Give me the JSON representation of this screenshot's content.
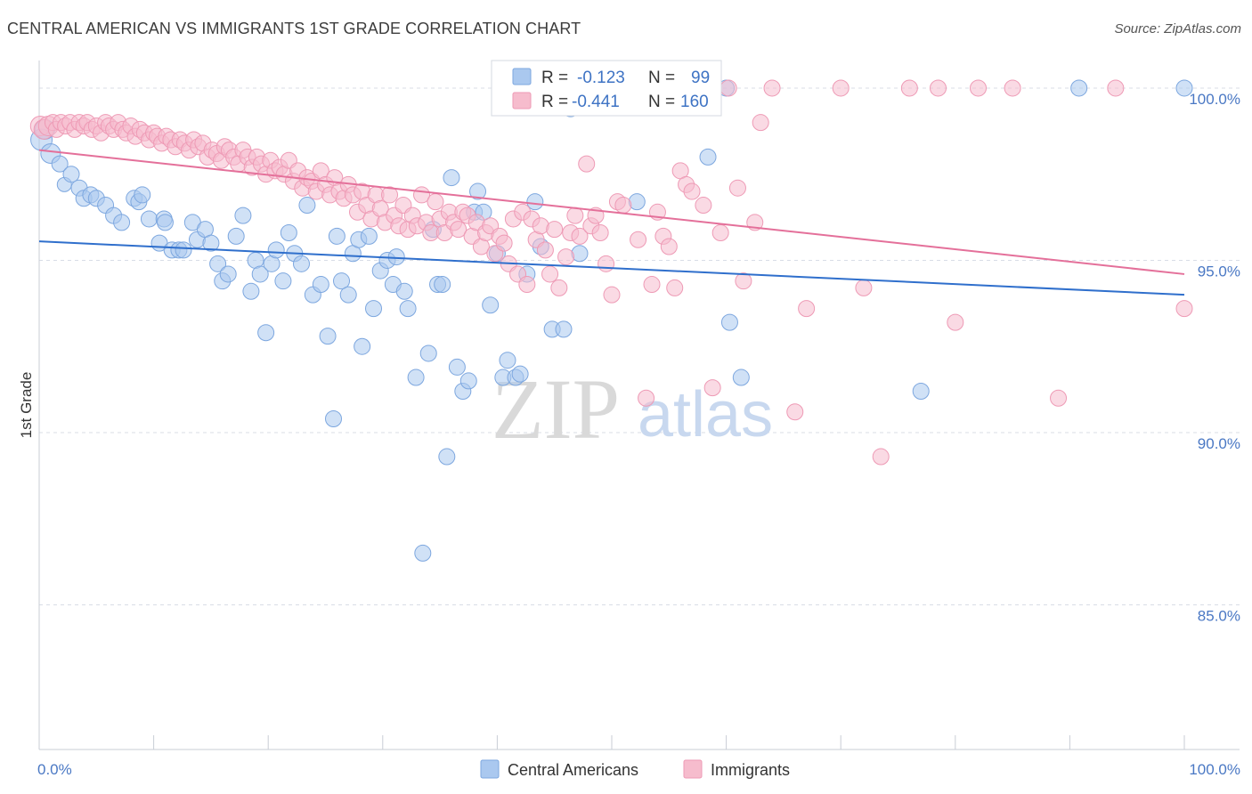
{
  "title": "CENTRAL AMERICAN VS IMMIGRANTS 1ST GRADE CORRELATION CHART",
  "source": "Source: ZipAtlas.com",
  "watermark": {
    "zip": "ZIP",
    "atlas": "atlas"
  },
  "colors": {
    "blue_fill": "#aac8ef",
    "blue_stroke": "#7da7df",
    "blue_line": "#2f6fcc",
    "pink_fill": "#f6bccd",
    "pink_stroke": "#ee9ab5",
    "pink_line": "#e4709a",
    "grid": "#d8dde6",
    "tick_text": "#4a78c4"
  },
  "chart_data": {
    "type": "scatter",
    "xlabel": "",
    "ylabel": "1st Grade",
    "xlim": [
      0,
      100
    ],
    "ylim": [
      80.8,
      100.8
    ],
    "x_tick_labels": [
      {
        "value": 0,
        "label": "0.0%"
      },
      {
        "value": 100,
        "label": "100.0%"
      }
    ],
    "y_ticks": [
      {
        "value": 100,
        "label": "100.0%"
      },
      {
        "value": 95,
        "label": "95.0%"
      },
      {
        "value": 90,
        "label": "90.0%"
      },
      {
        "value": 85,
        "label": "85.0%"
      }
    ],
    "grid": true,
    "legend": {
      "position": "top-center",
      "entries": [
        {
          "r_label": "R =",
          "r_value": "-0.123",
          "n_label": "N =",
          "n_value": "99"
        },
        {
          "r_label": "R =",
          "r_value": "-0.441",
          "n_label": "N =",
          "n_value": "160"
        }
      ]
    },
    "bottom_legend": [
      "Central Americans",
      "Immigrants"
    ],
    "series": [
      {
        "name": "Central Americans",
        "trend": {
          "x": [
            0,
            100
          ],
          "y": [
            95.55,
            94.0
          ]
        },
        "points": [
          [
            0.2,
            98.5
          ],
          [
            0.5,
            98.8
          ],
          [
            1.0,
            98.1
          ],
          [
            1.8,
            97.8
          ],
          [
            2.2,
            97.2
          ],
          [
            2.8,
            97.5
          ],
          [
            3.5,
            97.1
          ],
          [
            3.9,
            96.8
          ],
          [
            4.5,
            96.9
          ],
          [
            5.0,
            96.8
          ],
          [
            5.8,
            96.6
          ],
          [
            6.5,
            96.3
          ],
          [
            7.2,
            96.1
          ],
          [
            8.3,
            96.8
          ],
          [
            8.7,
            96.7
          ],
          [
            9.0,
            96.9
          ],
          [
            9.6,
            96.2
          ],
          [
            10.5,
            95.5
          ],
          [
            10.9,
            96.2
          ],
          [
            11.0,
            96.1
          ],
          [
            11.6,
            95.3
          ],
          [
            12.2,
            95.3
          ],
          [
            12.6,
            95.3
          ],
          [
            13.4,
            96.1
          ],
          [
            13.8,
            95.6
          ],
          [
            14.5,
            95.9
          ],
          [
            15.0,
            95.5
          ],
          [
            15.6,
            94.9
          ],
          [
            16.0,
            94.4
          ],
          [
            16.5,
            94.6
          ],
          [
            17.2,
            95.7
          ],
          [
            17.8,
            96.3
          ],
          [
            18.5,
            94.1
          ],
          [
            18.9,
            95.0
          ],
          [
            19.3,
            94.6
          ],
          [
            19.8,
            92.9
          ],
          [
            20.3,
            94.9
          ],
          [
            20.7,
            95.3
          ],
          [
            21.3,
            94.4
          ],
          [
            21.8,
            95.8
          ],
          [
            22.3,
            95.2
          ],
          [
            22.9,
            94.9
          ],
          [
            23.4,
            96.6
          ],
          [
            23.9,
            94.0
          ],
          [
            24.6,
            94.3
          ],
          [
            25.2,
            92.8
          ],
          [
            25.7,
            90.4
          ],
          [
            26.0,
            95.7
          ],
          [
            26.4,
            94.4
          ],
          [
            27.0,
            94.0
          ],
          [
            27.4,
            95.2
          ],
          [
            27.9,
            95.6
          ],
          [
            28.2,
            92.5
          ],
          [
            28.8,
            95.7
          ],
          [
            29.2,
            93.6
          ],
          [
            29.8,
            94.7
          ],
          [
            30.4,
            95.0
          ],
          [
            30.9,
            94.3
          ],
          [
            31.2,
            95.1
          ],
          [
            31.9,
            94.1
          ],
          [
            32.2,
            93.6
          ],
          [
            32.9,
            91.6
          ],
          [
            33.5,
            86.5
          ],
          [
            34.0,
            92.3
          ],
          [
            34.4,
            95.9
          ],
          [
            34.8,
            94.3
          ],
          [
            35.2,
            94.3
          ],
          [
            35.6,
            89.3
          ],
          [
            36.0,
            97.4
          ],
          [
            36.5,
            91.9
          ],
          [
            37.0,
            91.2
          ],
          [
            37.5,
            91.5
          ],
          [
            38.0,
            96.4
          ],
          [
            38.3,
            97.0
          ],
          [
            38.8,
            96.4
          ],
          [
            39.4,
            93.7
          ],
          [
            40.0,
            95.2
          ],
          [
            40.5,
            91.6
          ],
          [
            40.9,
            92.1
          ],
          [
            41.6,
            91.6
          ],
          [
            42.0,
            91.7
          ],
          [
            42.6,
            94.6
          ],
          [
            43.3,
            96.7
          ],
          [
            43.8,
            95.4
          ],
          [
            44.8,
            93.0
          ],
          [
            45.8,
            93.0
          ],
          [
            46.4,
            99.4
          ],
          [
            47.2,
            95.2
          ],
          [
            47.8,
            100.0
          ],
          [
            52.2,
            96.7
          ],
          [
            58.4,
            98.0
          ],
          [
            60.0,
            100.0
          ],
          [
            60.3,
            93.2
          ],
          [
            61.3,
            91.6
          ],
          [
            77.0,
            91.2
          ],
          [
            90.8,
            100.0
          ],
          [
            100.0,
            100.0
          ]
        ]
      },
      {
        "name": "Immigrants",
        "trend": {
          "x": [
            0,
            100
          ],
          "y": [
            98.2,
            94.6
          ]
        },
        "points": [
          [
            0.1,
            98.9
          ],
          [
            0.4,
            98.8
          ],
          [
            0.8,
            98.9
          ],
          [
            1.2,
            99.0
          ],
          [
            1.5,
            98.8
          ],
          [
            1.9,
            99.0
          ],
          [
            2.3,
            98.9
          ],
          [
            2.7,
            99.0
          ],
          [
            3.1,
            98.8
          ],
          [
            3.5,
            99.0
          ],
          [
            3.9,
            98.9
          ],
          [
            4.2,
            99.0
          ],
          [
            4.6,
            98.8
          ],
          [
            5.0,
            98.9
          ],
          [
            5.4,
            98.7
          ],
          [
            5.8,
            99.0
          ],
          [
            6.1,
            98.9
          ],
          [
            6.5,
            98.8
          ],
          [
            6.9,
            99.0
          ],
          [
            7.3,
            98.8
          ],
          [
            7.6,
            98.7
          ],
          [
            8.0,
            98.9
          ],
          [
            8.4,
            98.6
          ],
          [
            8.8,
            98.8
          ],
          [
            9.2,
            98.7
          ],
          [
            9.6,
            98.5
          ],
          [
            10.0,
            98.7
          ],
          [
            10.3,
            98.6
          ],
          [
            10.7,
            98.4
          ],
          [
            11.1,
            98.6
          ],
          [
            11.5,
            98.5
          ],
          [
            11.9,
            98.3
          ],
          [
            12.3,
            98.5
          ],
          [
            12.7,
            98.4
          ],
          [
            13.1,
            98.2
          ],
          [
            13.5,
            98.5
          ],
          [
            13.9,
            98.3
          ],
          [
            14.3,
            98.4
          ],
          [
            14.7,
            98.0
          ],
          [
            15.1,
            98.2
          ],
          [
            15.5,
            98.1
          ],
          [
            15.9,
            97.9
          ],
          [
            16.2,
            98.3
          ],
          [
            16.6,
            98.2
          ],
          [
            17.0,
            98.0
          ],
          [
            17.4,
            97.8
          ],
          [
            17.8,
            98.2
          ],
          [
            18.2,
            98.0
          ],
          [
            18.6,
            97.7
          ],
          [
            19.0,
            98.0
          ],
          [
            19.4,
            97.8
          ],
          [
            19.8,
            97.5
          ],
          [
            20.2,
            97.9
          ],
          [
            20.6,
            97.6
          ],
          [
            21.0,
            97.7
          ],
          [
            21.4,
            97.5
          ],
          [
            21.8,
            97.9
          ],
          [
            22.2,
            97.3
          ],
          [
            22.6,
            97.6
          ],
          [
            23.0,
            97.1
          ],
          [
            23.4,
            97.4
          ],
          [
            23.8,
            97.3
          ],
          [
            24.2,
            97.0
          ],
          [
            24.6,
            97.6
          ],
          [
            25.0,
            97.2
          ],
          [
            25.4,
            96.9
          ],
          [
            25.8,
            97.4
          ],
          [
            26.2,
            97.0
          ],
          [
            26.6,
            96.8
          ],
          [
            27.0,
            97.2
          ],
          [
            27.4,
            96.9
          ],
          [
            27.8,
            96.4
          ],
          [
            28.2,
            97.0
          ],
          [
            28.6,
            96.6
          ],
          [
            29.0,
            96.2
          ],
          [
            29.4,
            96.9
          ],
          [
            29.8,
            96.5
          ],
          [
            30.2,
            96.1
          ],
          [
            30.6,
            96.9
          ],
          [
            31.0,
            96.3
          ],
          [
            31.4,
            96.0
          ],
          [
            31.8,
            96.6
          ],
          [
            32.2,
            95.9
          ],
          [
            32.6,
            96.3
          ],
          [
            33.0,
            96.0
          ],
          [
            33.4,
            96.9
          ],
          [
            33.8,
            96.1
          ],
          [
            34.2,
            95.8
          ],
          [
            34.6,
            96.7
          ],
          [
            35.0,
            96.2
          ],
          [
            35.4,
            95.8
          ],
          [
            35.8,
            96.4
          ],
          [
            36.2,
            96.1
          ],
          [
            36.6,
            95.9
          ],
          [
            37.0,
            96.4
          ],
          [
            37.4,
            96.3
          ],
          [
            37.8,
            95.7
          ],
          [
            38.2,
            96.1
          ],
          [
            38.6,
            95.4
          ],
          [
            39.0,
            95.8
          ],
          [
            39.4,
            96.0
          ],
          [
            39.8,
            95.2
          ],
          [
            40.2,
            95.7
          ],
          [
            40.6,
            95.5
          ],
          [
            41.0,
            94.9
          ],
          [
            41.4,
            96.2
          ],
          [
            41.8,
            94.6
          ],
          [
            42.2,
            96.4
          ],
          [
            42.6,
            94.3
          ],
          [
            43.0,
            96.2
          ],
          [
            43.4,
            95.6
          ],
          [
            43.8,
            96.0
          ],
          [
            44.2,
            95.3
          ],
          [
            44.6,
            94.6
          ],
          [
            45.0,
            95.9
          ],
          [
            45.4,
            94.2
          ],
          [
            46.0,
            95.1
          ],
          [
            46.4,
            95.8
          ],
          [
            46.8,
            96.3
          ],
          [
            47.2,
            95.7
          ],
          [
            47.8,
            97.8
          ],
          [
            48.2,
            96.0
          ],
          [
            48.6,
            96.3
          ],
          [
            49.0,
            95.8
          ],
          [
            49.5,
            94.9
          ],
          [
            50.0,
            94.0
          ],
          [
            50.5,
            96.7
          ],
          [
            51.0,
            96.6
          ],
          [
            52.3,
            95.6
          ],
          [
            53.0,
            91.0
          ],
          [
            53.5,
            94.3
          ],
          [
            54.0,
            96.4
          ],
          [
            54.5,
            95.7
          ],
          [
            55.0,
            95.4
          ],
          [
            55.5,
            94.2
          ],
          [
            56.0,
            97.6
          ],
          [
            56.5,
            97.2
          ],
          [
            57.0,
            97.0
          ],
          [
            58.0,
            96.6
          ],
          [
            58.8,
            91.3
          ],
          [
            59.5,
            95.8
          ],
          [
            60.2,
            100.0
          ],
          [
            61.0,
            97.1
          ],
          [
            61.5,
            94.4
          ],
          [
            62.5,
            96.1
          ],
          [
            63.0,
            99.0
          ],
          [
            64.0,
            100.0
          ],
          [
            66.0,
            90.6
          ],
          [
            67.0,
            93.6
          ],
          [
            70.0,
            100.0
          ],
          [
            72.0,
            94.2
          ],
          [
            73.5,
            89.3
          ],
          [
            76.0,
            100.0
          ],
          [
            78.5,
            100.0
          ],
          [
            80.0,
            93.2
          ],
          [
            82.0,
            100.0
          ],
          [
            85.0,
            100.0
          ],
          [
            89.0,
            91.0
          ],
          [
            94.0,
            100.0
          ],
          [
            100.0,
            93.6
          ]
        ]
      }
    ]
  }
}
